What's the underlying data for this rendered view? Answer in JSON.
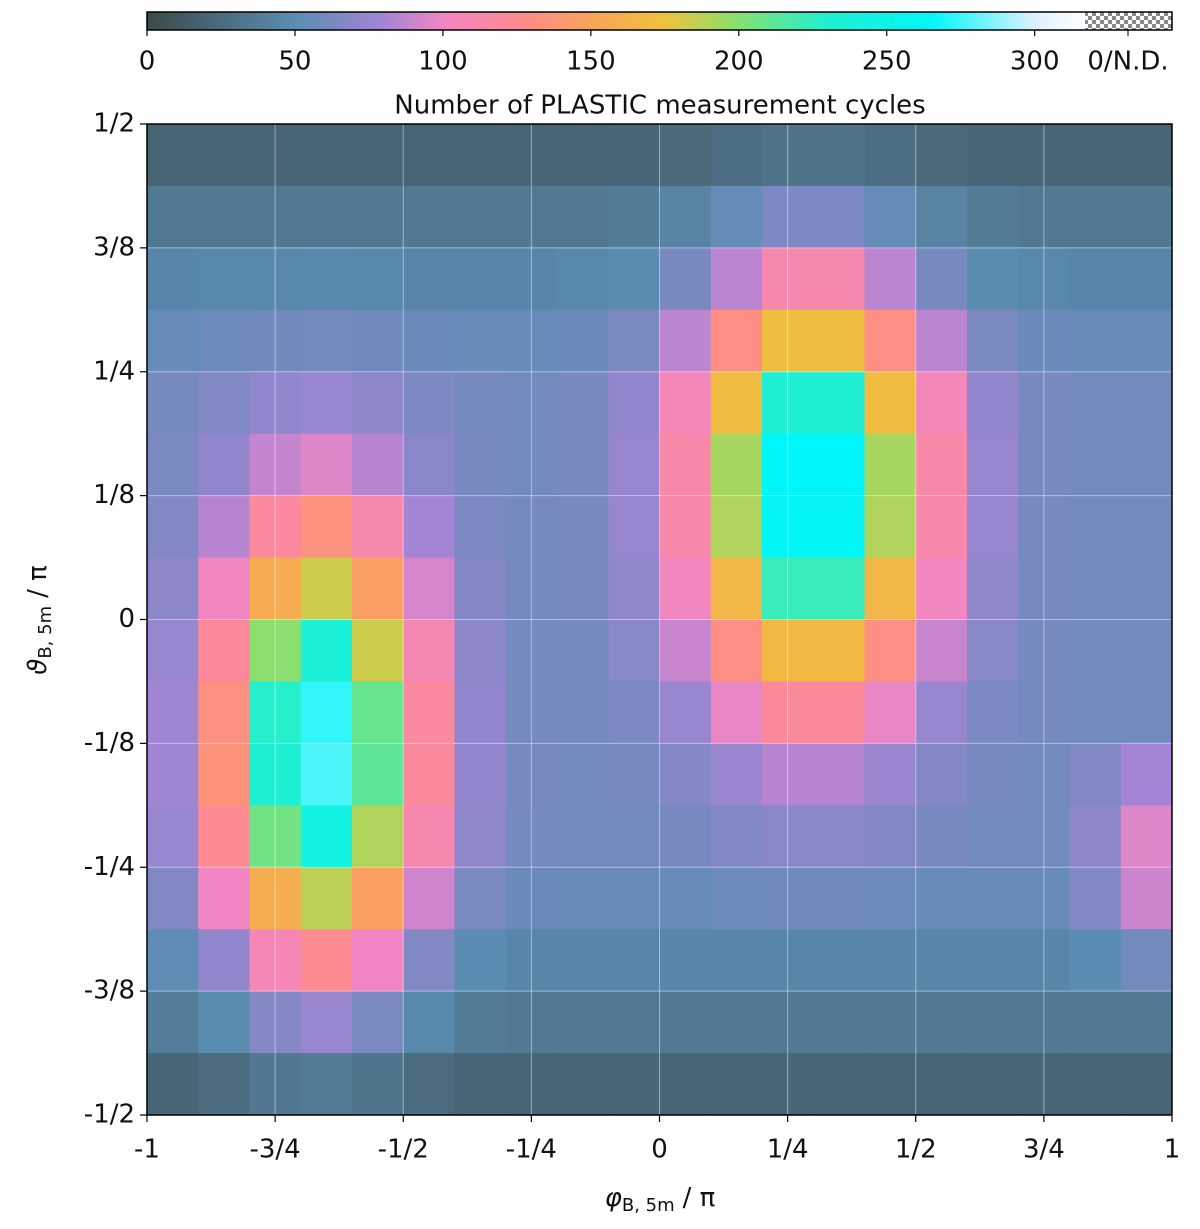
{
  "chart_data": {
    "type": "heatmap",
    "colorbar_label": "Number of PLASTIC measurement cycles",
    "colorbar_nd_label": "0/N.D.",
    "clim": [
      0,
      317
    ],
    "cticks": [
      0,
      50,
      100,
      150,
      200,
      250,
      300
    ],
    "colormap": [
      {
        "value": 0,
        "color": "#3b4a49"
      },
      {
        "value": 50,
        "color": "#5b8db2"
      },
      {
        "value": 80,
        "color": "#a484d4"
      },
      {
        "value": 100,
        "color": "#f086c4"
      },
      {
        "value": 125,
        "color": "#ff8a90"
      },
      {
        "value": 150,
        "color": "#f9a35a"
      },
      {
        "value": 175,
        "color": "#eec23c"
      },
      {
        "value": 200,
        "color": "#86e070"
      },
      {
        "value": 230,
        "color": "#20f0d2"
      },
      {
        "value": 265,
        "color": "#00f6f8"
      },
      {
        "value": 300,
        "color": "#dcf2ff"
      },
      {
        "value": 317,
        "color": "#ffffff"
      }
    ],
    "xlabel": {
      "symbol": "φ",
      "subscript": "B, 5m",
      "suffix": "/ π"
    },
    "ylabel": {
      "symbol": "ϑ",
      "subscript": "B, 5m",
      "suffix": "/ π"
    },
    "xlim": [
      -1,
      1
    ],
    "ylim": [
      -0.5,
      0.5
    ],
    "xticks": [
      -1,
      {
        "value": -0.75,
        "label": "-3/4"
      },
      {
        "value": -0.5,
        "label": "-1/2"
      },
      {
        "value": -0.25,
        "label": "-1/4"
      },
      0,
      {
        "value": 0.25,
        "label": "1/4"
      },
      {
        "value": 0.5,
        "label": "1/2"
      },
      {
        "value": 0.75,
        "label": "3/4"
      },
      1
    ],
    "yticks": [
      {
        "value": -0.5,
        "label": "-1/2"
      },
      {
        "value": -0.375,
        "label": "-3/8"
      },
      {
        "value": -0.25,
        "label": "-1/4"
      },
      {
        "value": -0.125,
        "label": "-1/8"
      },
      0,
      {
        "value": 0.125,
        "label": "1/8"
      },
      {
        "value": 0.25,
        "label": "1/4"
      },
      {
        "value": 0.375,
        "label": "3/8"
      },
      {
        "value": 0.5,
        "label": "1/2"
      }
    ],
    "grid": true,
    "values": [
      [
        20,
        20,
        20,
        20,
        20,
        20,
        20,
        20,
        20,
        21,
        23,
        27,
        31,
        31,
        27,
        23,
        21,
        20,
        20,
        20
      ],
      [
        35,
        35,
        35,
        35,
        35,
        35,
        35,
        35,
        35,
        37,
        43,
        54,
        64,
        64,
        54,
        43,
        37,
        35,
        35,
        35
      ],
      [
        45,
        46,
        46,
        47,
        46,
        45,
        45,
        45,
        46,
        49,
        62,
        86,
        110,
        110,
        86,
        62,
        49,
        46,
        45,
        45
      ],
      [
        55,
        57,
        59,
        60,
        59,
        56,
        55,
        55,
        56,
        63,
        86,
        130,
        172,
        172,
        130,
        86,
        63,
        56,
        55,
        55
      ],
      [
        61,
        65,
        72,
        75,
        70,
        64,
        61,
        60,
        62,
        72,
        105,
        170,
        231,
        231,
        170,
        105,
        72,
        62,
        60,
        60
      ],
      [
        63,
        72,
        88,
        95,
        85,
        69,
        62,
        60,
        62,
        74,
        114,
        192,
        265,
        265,
        192,
        114,
        74,
        62,
        60,
        60
      ],
      [
        66,
        85,
        118,
        133,
        111,
        80,
        64,
        61,
        62,
        74,
        113,
        190,
        262,
        262,
        190,
        113,
        74,
        62,
        60,
        60
      ],
      [
        70,
        102,
        157,
        183,
        146,
        93,
        67,
        61,
        62,
        71,
        103,
        165,
        223,
        223,
        165,
        103,
        71,
        62,
        60,
        60
      ],
      [
        75,
        120,
        199,
        236,
        183,
        108,
        70,
        61,
        61,
        68,
        89,
        130,
        168,
        168,
        130,
        89,
        68,
        61,
        60,
        60
      ],
      [
        78,
        132,
        228,
        273,
        209,
        118,
        72,
        61,
        61,
        64,
        75,
        98,
        119,
        119,
        98,
        75,
        64,
        61,
        60,
        60
      ],
      [
        78,
        134,
        231,
        277,
        212,
        119,
        73,
        62,
        60,
        62,
        67,
        76,
        85,
        85,
        76,
        67,
        62,
        60,
        65,
        80
      ],
      [
        75,
        123,
        206,
        245,
        190,
        110,
        71,
        61,
        60,
        60,
        62,
        66,
        69,
        69,
        66,
        62,
        60,
        60,
        70,
        95
      ],
      [
        66,
        100,
        159,
        187,
        147,
        91,
        63,
        56,
        55,
        55,
        55,
        57,
        58,
        58,
        57,
        55,
        55,
        55,
        65,
        90
      ],
      [
        52,
        72,
        107,
        124,
        100,
        66,
        50,
        45,
        45,
        45,
        45,
        45,
        45,
        45,
        45,
        45,
        45,
        45,
        50,
        60
      ],
      [
        38,
        49,
        67,
        75,
        63,
        46,
        37,
        35,
        35,
        35,
        35,
        35,
        35,
        35,
        35,
        35,
        35,
        35,
        35,
        35
      ],
      [
        21,
        26,
        34,
        37,
        32,
        25,
        21,
        20,
        20,
        20,
        20,
        20,
        20,
        20,
        20,
        20,
        20,
        20,
        20,
        20
      ]
    ]
  }
}
